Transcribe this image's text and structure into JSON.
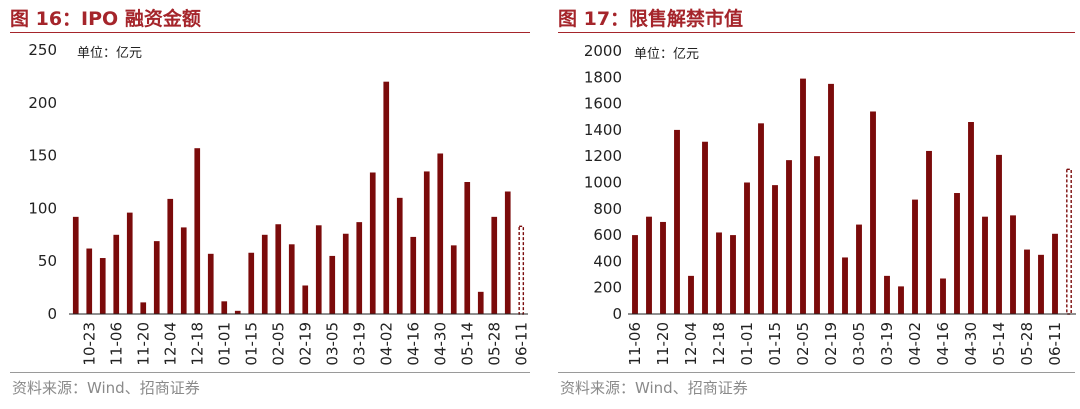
{
  "figures": [
    {
      "title": "图 16：IPO 融资金额",
      "source": "资料来源：Wind、招商证券",
      "chart_data": {
        "type": "bar",
        "unit_label": "单位：亿元",
        "ylim": [
          0,
          250
        ],
        "yticks": [
          0,
          50,
          100,
          150,
          200,
          250
        ],
        "xtick_labels": [
          "10-23",
          "11-06",
          "11-20",
          "12-04",
          "12-18",
          "01-01",
          "01-15",
          "02-05",
          "02-19",
          "03-05",
          "03-19",
          "04-02",
          "04-16",
          "04-30",
          "05-14",
          "05-28",
          "06-11"
        ],
        "values": [
          92,
          62,
          53,
          75,
          96,
          11,
          69,
          109,
          82,
          157,
          57,
          12,
          3,
          58,
          75,
          85,
          66,
          27,
          84,
          55,
          76,
          87,
          134,
          220,
          110,
          73,
          135,
          152,
          65,
          125,
          21,
          92,
          116,
          83
        ],
        "last_bar_dashed": true,
        "bar_color": "#7b0b0b",
        "grid": false,
        "legend": "none"
      }
    },
    {
      "title": "图 17：限售解禁市值",
      "source": "资料来源：Wind、招商证券",
      "chart_data": {
        "type": "bar",
        "unit_label": "单位：亿元",
        "ylim": [
          0,
          2000
        ],
        "yticks": [
          0,
          200,
          400,
          600,
          800,
          1000,
          1200,
          1400,
          1600,
          1800,
          2000
        ],
        "xtick_labels": [
          "11-06",
          "11-20",
          "12-04",
          "12-18",
          "01-01",
          "01-15",
          "02-05",
          "02-19",
          "03-05",
          "03-19",
          "04-02",
          "04-16",
          "04-30",
          "05-14",
          "05-28",
          "06-11"
        ],
        "values": [
          600,
          740,
          700,
          1400,
          290,
          1310,
          620,
          600,
          1000,
          1450,
          980,
          1170,
          1790,
          1200,
          1750,
          430,
          680,
          1540,
          290,
          210,
          870,
          1240,
          270,
          920,
          1460,
          740,
          1210,
          750,
          490,
          450,
          610,
          1100
        ],
        "last_bar_dashed": true,
        "bar_color": "#7b0b0b",
        "grid": false,
        "legend": "none"
      }
    }
  ]
}
